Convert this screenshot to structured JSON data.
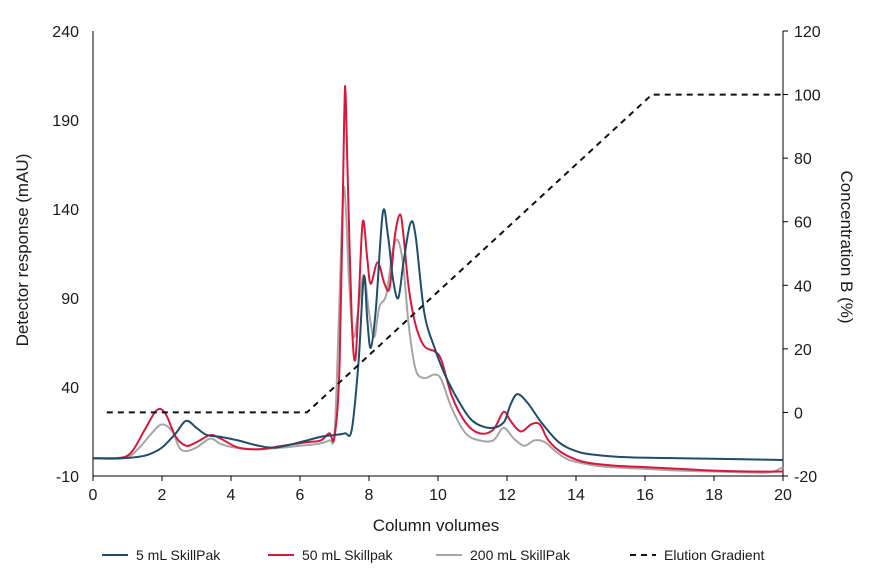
{
  "chart_data": {
    "type": "line",
    "xlabel": "Column volumes",
    "ylabel": "Detector response (mAU)",
    "y2label": "Concentration B (%)",
    "xlim": [
      0,
      20
    ],
    "ylim": [
      -10,
      240
    ],
    "y2lim": [
      -20,
      120
    ],
    "xticks": [
      "0",
      "2",
      "4",
      "6",
      "8",
      "10",
      "12",
      "14",
      "16",
      "18",
      "20"
    ],
    "yticks": [
      "-10",
      "40",
      "90",
      "140",
      "190",
      "240"
    ],
    "y2ticks": [
      "-20",
      "0",
      "20",
      "40",
      "60",
      "80",
      "100",
      "120"
    ],
    "grid": false,
    "legend_position": "bottom",
    "series": [
      {
        "name": "5 mL SkillPak",
        "color": "#1d4e6b",
        "axis": "left",
        "points": [
          [
            0,
            0
          ],
          [
            0.8,
            0
          ],
          [
            1.2,
            0.5
          ],
          [
            1.6,
            2
          ],
          [
            2.0,
            6
          ],
          [
            2.4,
            14
          ],
          [
            2.7,
            21
          ],
          [
            3.0,
            17
          ],
          [
            3.3,
            13
          ],
          [
            3.7,
            12
          ],
          [
            4.2,
            10
          ],
          [
            4.8,
            7
          ],
          [
            5.3,
            6
          ],
          [
            6.0,
            9
          ],
          [
            6.6,
            12
          ],
          [
            7.0,
            13
          ],
          [
            7.3,
            14
          ],
          [
            7.5,
            16
          ],
          [
            7.7,
            55
          ],
          [
            7.85,
            102
          ],
          [
            7.95,
            78
          ],
          [
            8.05,
            62
          ],
          [
            8.2,
            84
          ],
          [
            8.4,
            138
          ],
          [
            8.55,
            125
          ],
          [
            8.7,
            100
          ],
          [
            8.85,
            90
          ],
          [
            9.0,
            110
          ],
          [
            9.2,
            132
          ],
          [
            9.35,
            125
          ],
          [
            9.6,
            82
          ],
          [
            9.9,
            62
          ],
          [
            10.2,
            47
          ],
          [
            10.6,
            32
          ],
          [
            11.0,
            21
          ],
          [
            11.5,
            17
          ],
          [
            11.9,
            20
          ],
          [
            12.1,
            30
          ],
          [
            12.3,
            36
          ],
          [
            12.6,
            31
          ],
          [
            13.0,
            20
          ],
          [
            13.5,
            9
          ],
          [
            14.0,
            4
          ],
          [
            14.5,
            2
          ],
          [
            15.5,
            0.5
          ],
          [
            17,
            0
          ],
          [
            20,
            -1
          ]
        ]
      },
      {
        "name": "50 mL Skillpak",
        "color": "#d6193a",
        "axis": "left",
        "points": [
          [
            0,
            0
          ],
          [
            0.7,
            0
          ],
          [
            1.1,
            3
          ],
          [
            1.5,
            16
          ],
          [
            1.85,
            27
          ],
          [
            2.1,
            25
          ],
          [
            2.4,
            12
          ],
          [
            2.7,
            7
          ],
          [
            3.0,
            9
          ],
          [
            3.4,
            13
          ],
          [
            3.7,
            11
          ],
          [
            4.2,
            6
          ],
          [
            4.8,
            5
          ],
          [
            5.5,
            7
          ],
          [
            6.2,
            9
          ],
          [
            6.6,
            10
          ],
          [
            6.85,
            14
          ],
          [
            7.0,
            12
          ],
          [
            7.15,
            55
          ],
          [
            7.28,
            190
          ],
          [
            7.32,
            205
          ],
          [
            7.38,
            160
          ],
          [
            7.5,
            78
          ],
          [
            7.6,
            55
          ],
          [
            7.7,
            88
          ],
          [
            7.82,
            133
          ],
          [
            7.95,
            112
          ],
          [
            8.05,
            98
          ],
          [
            8.25,
            110
          ],
          [
            8.45,
            98
          ],
          [
            8.6,
            96
          ],
          [
            8.75,
            125
          ],
          [
            8.9,
            137
          ],
          [
            9.0,
            125
          ],
          [
            9.15,
            96
          ],
          [
            9.35,
            75
          ],
          [
            9.6,
            63
          ],
          [
            9.9,
            60
          ],
          [
            10.1,
            55
          ],
          [
            10.4,
            35
          ],
          [
            10.8,
            20
          ],
          [
            11.2,
            14
          ],
          [
            11.6,
            16
          ],
          [
            11.9,
            26
          ],
          [
            12.1,
            21
          ],
          [
            12.4,
            15
          ],
          [
            12.7,
            19
          ],
          [
            12.95,
            19
          ],
          [
            13.2,
            10
          ],
          [
            13.6,
            3
          ],
          [
            14.2,
            -2
          ],
          [
            15,
            -4
          ],
          [
            16,
            -5
          ],
          [
            17,
            -6
          ],
          [
            18,
            -7
          ],
          [
            19,
            -7.5
          ],
          [
            20,
            -7.5
          ]
        ]
      },
      {
        "name": "200 mL SkillPak",
        "color": "#a6a6a6",
        "axis": "left",
        "points": [
          [
            0,
            0
          ],
          [
            0.9,
            0
          ],
          [
            1.3,
            5
          ],
          [
            1.7,
            14
          ],
          [
            2.0,
            19
          ],
          [
            2.3,
            15
          ],
          [
            2.5,
            6
          ],
          [
            2.7,
            4
          ],
          [
            3.0,
            6
          ],
          [
            3.4,
            11
          ],
          [
            3.7,
            8
          ],
          [
            4.1,
            6
          ],
          [
            4.8,
            5
          ],
          [
            5.5,
            6
          ],
          [
            6.0,
            7
          ],
          [
            6.5,
            8
          ],
          [
            6.85,
            10
          ],
          [
            7.0,
            14
          ],
          [
            7.12,
            75
          ],
          [
            7.25,
            148
          ],
          [
            7.33,
            140
          ],
          [
            7.42,
            100
          ],
          [
            7.55,
            68
          ],
          [
            7.7,
            85
          ],
          [
            7.85,
            103
          ],
          [
            8.0,
            82
          ],
          [
            8.15,
            68
          ],
          [
            8.3,
            85
          ],
          [
            8.5,
            92
          ],
          [
            8.7,
            118
          ],
          [
            8.85,
            122
          ],
          [
            9.0,
            107
          ],
          [
            9.15,
            75
          ],
          [
            9.35,
            50
          ],
          [
            9.6,
            45
          ],
          [
            9.9,
            47
          ],
          [
            10.1,
            44
          ],
          [
            10.4,
            28
          ],
          [
            10.8,
            14
          ],
          [
            11.2,
            10
          ],
          [
            11.6,
            10
          ],
          [
            11.9,
            17
          ],
          [
            12.2,
            11
          ],
          [
            12.5,
            7
          ],
          [
            12.8,
            10
          ],
          [
            13.1,
            9
          ],
          [
            13.4,
            4
          ],
          [
            13.8,
            -1
          ],
          [
            14.5,
            -4
          ],
          [
            15,
            -5
          ],
          [
            16,
            -6
          ],
          [
            17,
            -7
          ],
          [
            18,
            -7.5
          ],
          [
            19,
            -8
          ],
          [
            19.6,
            -8
          ],
          [
            19.9,
            -6
          ],
          [
            20,
            -5
          ]
        ]
      },
      {
        "name": "Elution Gradient",
        "color": "#111111",
        "axis": "right",
        "dashed": true,
        "points": [
          [
            0.4,
            0
          ],
          [
            6.2,
            0
          ],
          [
            16.2,
            100
          ],
          [
            20,
            100
          ]
        ]
      }
    ]
  }
}
